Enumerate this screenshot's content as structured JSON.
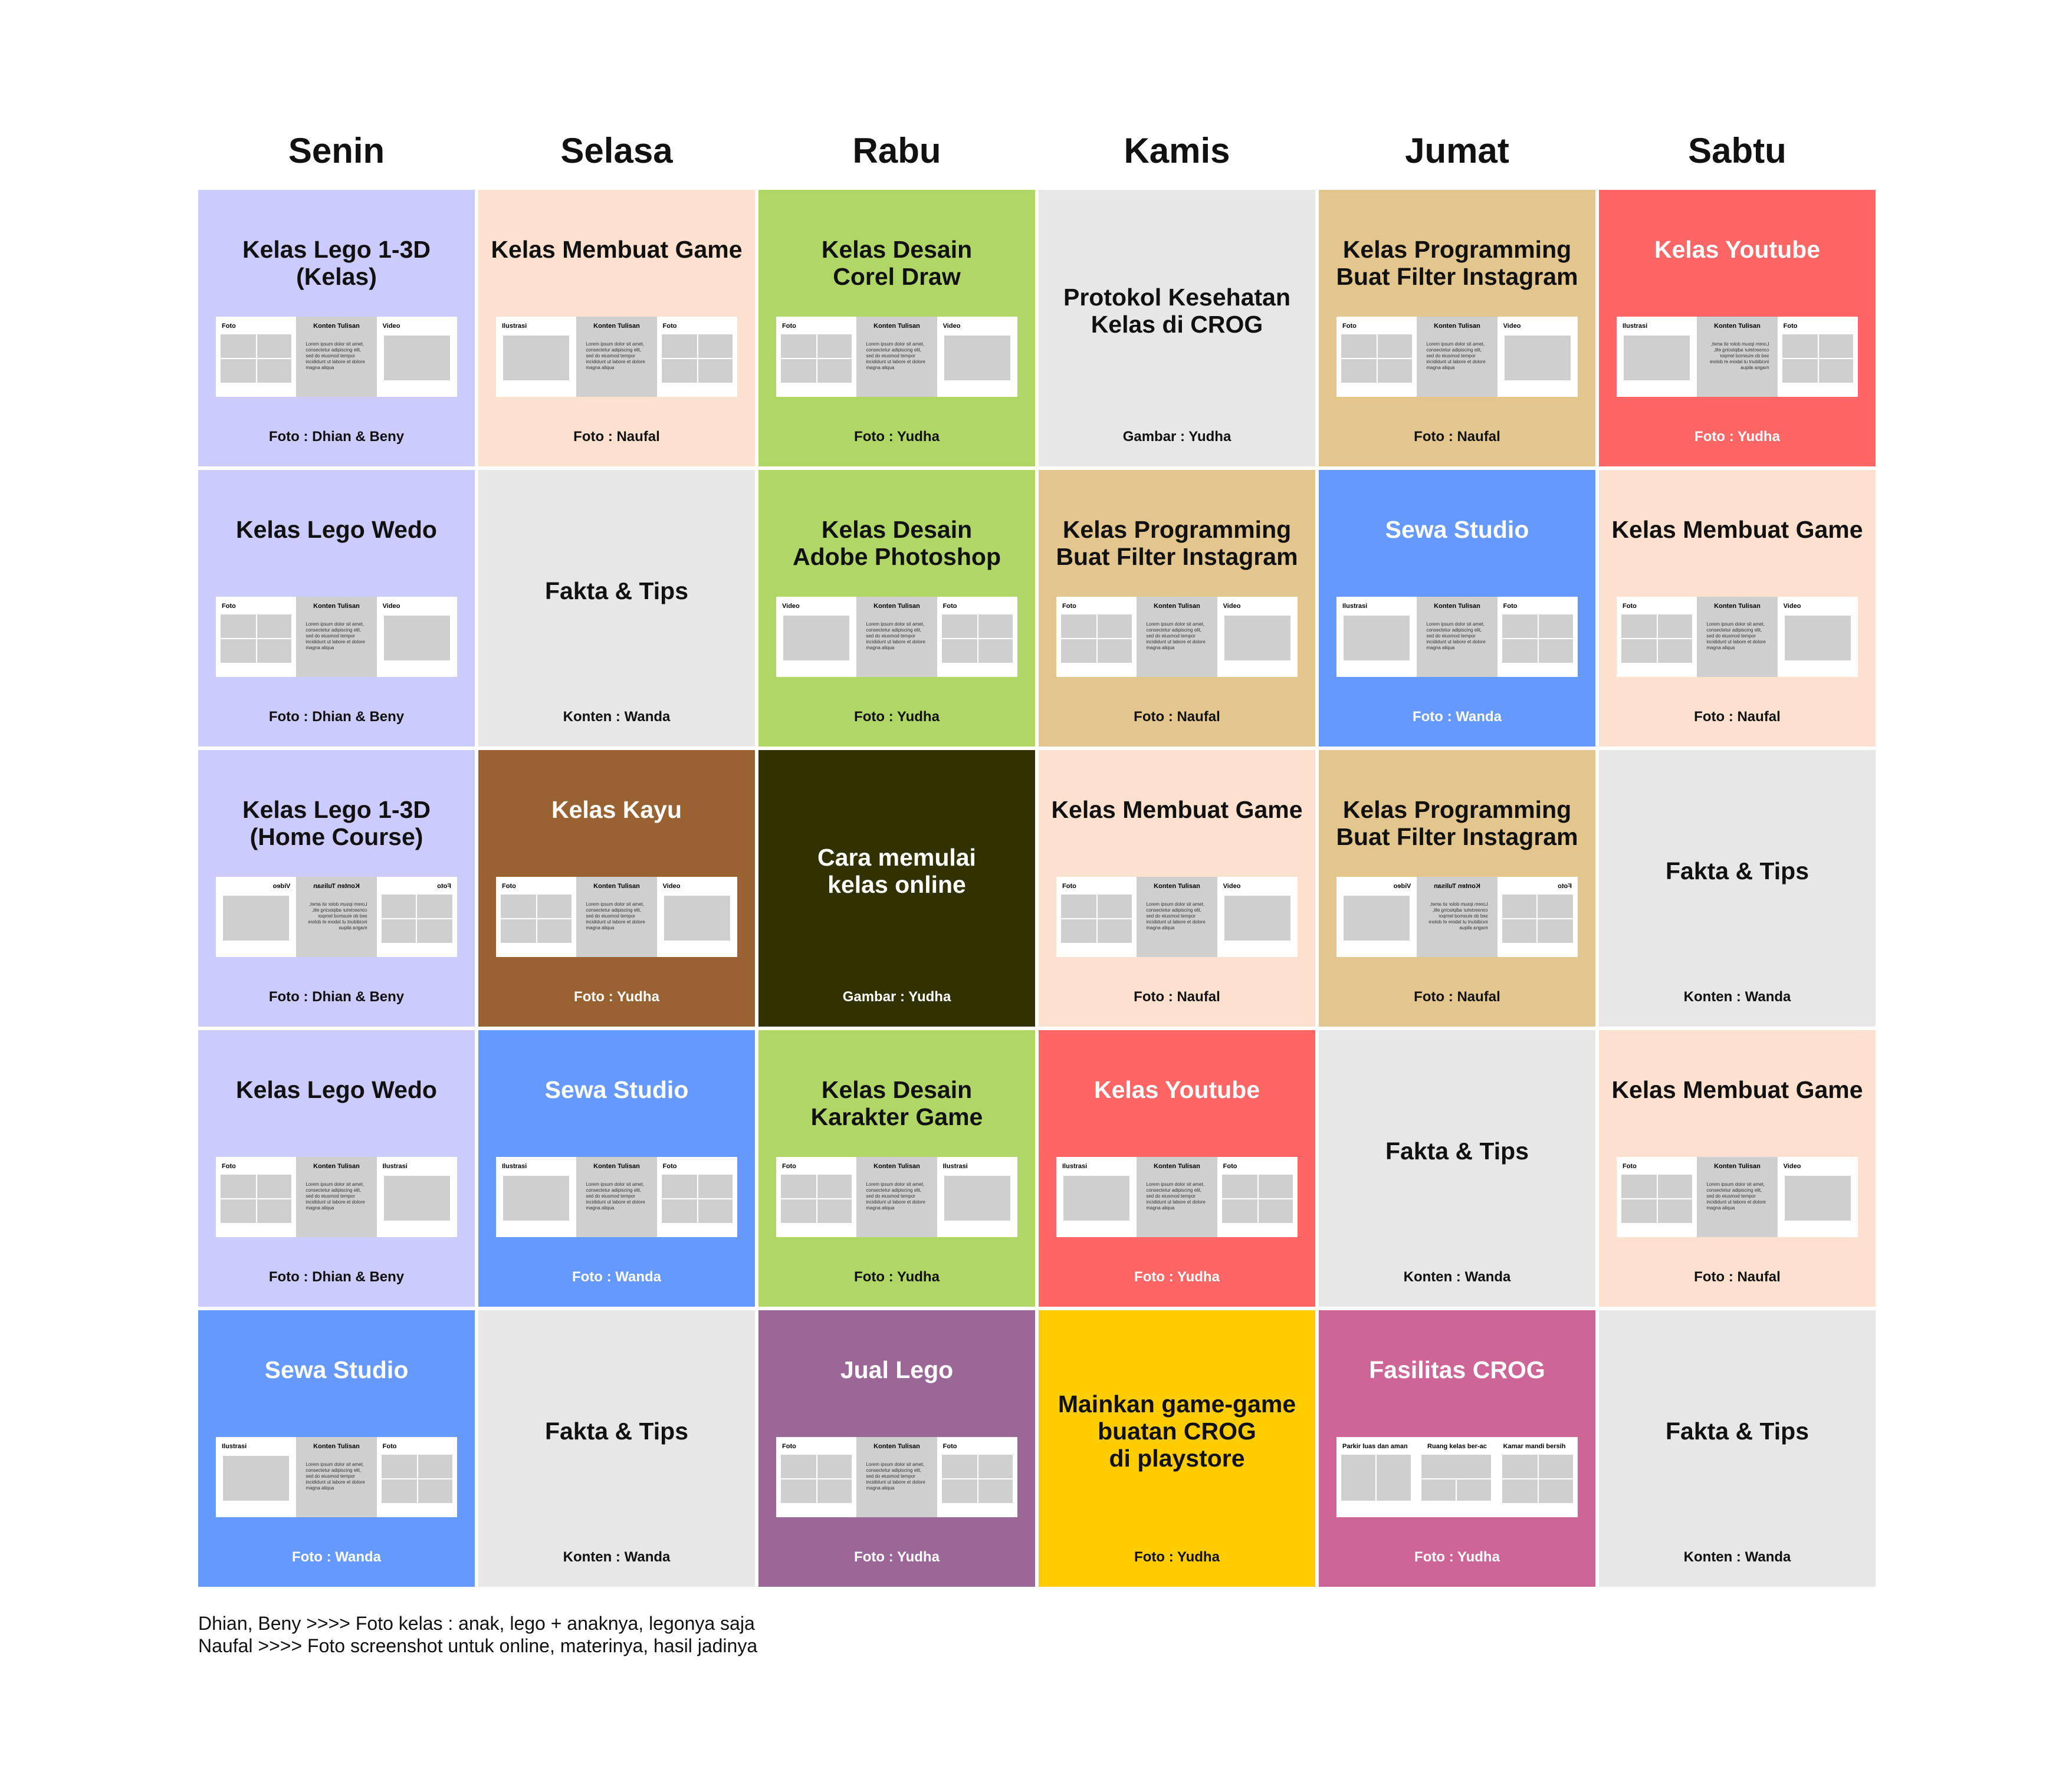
{
  "days": [
    "Senin",
    "Selasa",
    "Rabu",
    "Kamis",
    "Jumat",
    "Sabtu"
  ],
  "colors": {
    "lavender": "#cbcbfd",
    "peach": "#fde0cd",
    "green": "#b0d766",
    "gray": "#e7e7e7",
    "tan": "#e2c68e",
    "red": "#fe6666",
    "blue": "#6699fe",
    "brown": "#986233",
    "olive": "#323100",
    "purple": "#9a6797",
    "yellow": "#ffcc00",
    "pink": "#cd6697"
  },
  "thumbnail_text": "Lorem ipsum dolor sit amet, consectetur adipiscing elit, sed do eiusmod tempor incididunt ut labore et dolore magna aliqua",
  "rows": [
    [
      {
        "title": "Kelas Lego 1-3D\n(Kelas)",
        "credit": "Foto : Dhian & Beny",
        "bg": "lavender",
        "light": false,
        "panels": [
          {
            "label": "Foto",
            "type": "grid4"
          },
          {
            "label": "Konten Tulisan",
            "type": "text"
          },
          {
            "label": "Video",
            "type": "wide"
          }
        ]
      },
      {
        "title": "Kelas Membuat Game",
        "credit": "Foto : Naufal",
        "bg": "peach",
        "light": false,
        "panels": [
          {
            "label": "Ilustrasi",
            "type": "wide"
          },
          {
            "label": "Konten Tulisan",
            "type": "text"
          },
          {
            "label": "Foto",
            "type": "grid4"
          }
        ]
      },
      {
        "title": "Kelas Desain\nCorel Draw",
        "credit": "Foto : Yudha",
        "bg": "green",
        "light": false,
        "panels": [
          {
            "label": "Foto",
            "type": "grid4"
          },
          {
            "label": "Konten Tulisan",
            "type": "text"
          },
          {
            "label": "Video",
            "type": "wide"
          }
        ]
      },
      {
        "title": "Protokol Kesehatan\nKelas di CROG",
        "credit": "Gambar : Yudha",
        "bg": "gray",
        "light": false,
        "center": true
      },
      {
        "title": "Kelas Programming\nBuat Filter Instagram",
        "credit": "Foto : Naufal",
        "bg": "tan",
        "light": false,
        "panels": [
          {
            "label": "Foto",
            "type": "grid4"
          },
          {
            "label": "Konten Tulisan",
            "type": "text"
          },
          {
            "label": "Video",
            "type": "wide"
          }
        ]
      },
      {
        "title": "Kelas Youtube",
        "credit": "Foto : Yudha",
        "bg": "red",
        "light": true,
        "panels": [
          {
            "label": "Ilustrasi",
            "type": "wide"
          },
          {
            "label": "Konten Tulisan",
            "type": "text",
            "mirror": true
          },
          {
            "label": "Foto",
            "type": "grid4"
          }
        ]
      }
    ],
    [
      {
        "title": "Kelas Lego Wedo",
        "credit": "Foto : Dhian & Beny",
        "bg": "lavender",
        "light": false,
        "panels": [
          {
            "label": "Foto",
            "type": "grid4"
          },
          {
            "label": "Konten Tulisan",
            "type": "text"
          },
          {
            "label": "Video",
            "type": "wide"
          }
        ]
      },
      {
        "title": "Fakta & Tips",
        "credit": "Konten : Wanda",
        "bg": "gray",
        "light": false,
        "center": true
      },
      {
        "title": "Kelas Desain\nAdobe Photoshop",
        "credit": "Foto : Yudha",
        "bg": "green",
        "light": false,
        "panels": [
          {
            "label": "Video",
            "type": "wide"
          },
          {
            "label": "Konten Tulisan",
            "type": "text"
          },
          {
            "label": "Foto",
            "type": "grid4"
          }
        ]
      },
      {
        "title": "Kelas Programming\nBuat Filter Instagram",
        "credit": "Foto : Naufal",
        "bg": "tan",
        "light": false,
        "panels": [
          {
            "label": "Foto",
            "type": "grid4"
          },
          {
            "label": "Konten Tulisan",
            "type": "text"
          },
          {
            "label": "Video",
            "type": "wide"
          }
        ]
      },
      {
        "title": "Sewa Studio",
        "credit": "Foto : Wanda",
        "bg": "blue",
        "light": true,
        "panels": [
          {
            "label": "Ilustrasi",
            "type": "wide"
          },
          {
            "label": "Konten Tulisan",
            "type": "text"
          },
          {
            "label": "Foto",
            "type": "grid4"
          }
        ]
      },
      {
        "title": "Kelas Membuat Game",
        "credit": "Foto : Naufal",
        "bg": "peach",
        "light": false,
        "panels": [
          {
            "label": "Foto",
            "type": "grid4"
          },
          {
            "label": "Konten Tulisan",
            "type": "text"
          },
          {
            "label": "Video",
            "type": "wide"
          }
        ]
      }
    ],
    [
      {
        "title": "Kelas Lego 1-3D\n(Home Course)",
        "credit": "Foto : Dhian & Beny",
        "bg": "lavender",
        "light": false,
        "mirror": true,
        "panels": [
          {
            "label": "Foto",
            "type": "grid4"
          },
          {
            "label": "Konten Tulisan",
            "type": "text"
          },
          {
            "label": "Video",
            "type": "wide"
          }
        ]
      },
      {
        "title": "Kelas Kayu",
        "credit": "Foto : Yudha",
        "bg": "brown",
        "light": true,
        "panels": [
          {
            "label": "Foto",
            "type": "grid4"
          },
          {
            "label": "Konten Tulisan",
            "type": "text"
          },
          {
            "label": "Video",
            "type": "wide"
          }
        ]
      },
      {
        "title": "Cara memulai\nkelas online",
        "credit": "Gambar : Yudha",
        "bg": "olive",
        "light": true,
        "center": true
      },
      {
        "title": "Kelas Membuat Game",
        "credit": "Foto : Naufal",
        "bg": "peach",
        "light": false,
        "panels": [
          {
            "label": "Foto",
            "type": "grid4"
          },
          {
            "label": "Konten Tulisan",
            "type": "text"
          },
          {
            "label": "Video",
            "type": "wide"
          }
        ]
      },
      {
        "title": "Kelas Programming\nBuat Filter Instagram",
        "credit": "Foto : Naufal",
        "bg": "tan",
        "light": false,
        "mirror": true,
        "panels": [
          {
            "label": "Foto",
            "type": "grid4"
          },
          {
            "label": "Konten Tulisan",
            "type": "text"
          },
          {
            "label": "Video",
            "type": "wide"
          }
        ]
      },
      {
        "title": "Fakta & Tips",
        "credit": "Konten : Wanda",
        "bg": "gray",
        "light": false,
        "center": true
      }
    ],
    [
      {
        "title": "Kelas Lego Wedo",
        "credit": "Foto : Dhian & Beny",
        "bg": "lavender",
        "light": false,
        "panels": [
          {
            "label": "Foto",
            "type": "grid4"
          },
          {
            "label": "Konten Tulisan",
            "type": "text"
          },
          {
            "label": "Ilustrasi",
            "type": "wide"
          }
        ]
      },
      {
        "title": "Sewa Studio",
        "credit": "Foto : Wanda",
        "bg": "blue",
        "light": true,
        "panels": [
          {
            "label": "Ilustrasi",
            "type": "wide"
          },
          {
            "label": "Konten Tulisan",
            "type": "text"
          },
          {
            "label": "Foto",
            "type": "grid4"
          }
        ]
      },
      {
        "title": "Kelas Desain\nKarakter Game",
        "credit": "Foto : Yudha",
        "bg": "green",
        "light": false,
        "panels": [
          {
            "label": "Foto",
            "type": "grid4"
          },
          {
            "label": "Konten Tulisan",
            "type": "text"
          },
          {
            "label": "Ilustrasi",
            "type": "wide"
          }
        ]
      },
      {
        "title": "Kelas Youtube",
        "credit": "Foto : Yudha",
        "bg": "red",
        "light": true,
        "panels": [
          {
            "label": "Ilustrasi",
            "type": "wide"
          },
          {
            "label": "Konten Tulisan",
            "type": "text"
          },
          {
            "label": "Foto",
            "type": "grid4"
          }
        ]
      },
      {
        "title": "Fakta & Tips",
        "credit": "Konten : Wanda",
        "bg": "gray",
        "light": false,
        "center": true
      },
      {
        "title": "Kelas Membuat Game",
        "credit": "Foto : Naufal",
        "bg": "peach",
        "light": false,
        "panels": [
          {
            "label": "Foto",
            "type": "grid4"
          },
          {
            "label": "Konten Tulisan",
            "type": "text"
          },
          {
            "label": "Video",
            "type": "wide"
          }
        ]
      }
    ],
    [
      {
        "title": "Sewa Studio",
        "credit": "Foto : Wanda",
        "bg": "blue",
        "light": true,
        "panels": [
          {
            "label": "Ilustrasi",
            "type": "wide"
          },
          {
            "label": "Konten Tulisan",
            "type": "text"
          },
          {
            "label": "Foto",
            "type": "grid4"
          }
        ]
      },
      {
        "title": "Fakta & Tips",
        "credit": "Konten : Wanda",
        "bg": "gray",
        "light": false,
        "center": true
      },
      {
        "title": "Jual Lego",
        "credit": "Foto : Yudha",
        "bg": "purple",
        "light": true,
        "panels": [
          {
            "label": "Foto",
            "type": "grid4"
          },
          {
            "label": "Konten Tulisan",
            "type": "text"
          },
          {
            "label": "Foto",
            "type": "grid4"
          }
        ]
      },
      {
        "title": "Mainkan game-game\nbuatan CROG\ndi playstore",
        "credit": "Foto : Yudha",
        "bg": "yellow",
        "light": false,
        "center": true
      },
      {
        "title": "Fasilitas CROG",
        "credit": "Foto : Yudha",
        "bg": "pink",
        "light": true,
        "panels": [
          {
            "label": "Parkir luas dan aman",
            "type": "grid2",
            "align": "l"
          },
          {
            "label": "Ruang kelas ber-ac",
            "type": "grid4w",
            "align": "c"
          },
          {
            "label": "Kamar mandi bersih",
            "type": "grid4",
            "align": "l"
          }
        ]
      },
      {
        "title": "Fakta & Tips",
        "credit": "Konten : Wanda",
        "bg": "gray",
        "light": false,
        "center": true
      }
    ]
  ],
  "notes": [
    "Dhian, Beny >>>> Foto kelas : anak, lego + anaknya, legonya saja",
    "Naufal >>>> Foto screenshot untuk online, materinya, hasil jadinya"
  ]
}
